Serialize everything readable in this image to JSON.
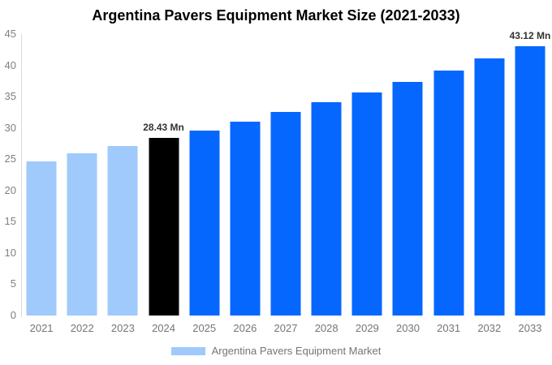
{
  "chart_data": {
    "type": "bar",
    "title": "Argentina Pavers Equipment Market Size (2021-2033)",
    "categories": [
      "2021",
      "2022",
      "2023",
      "2024",
      "2025",
      "2026",
      "2027",
      "2028",
      "2029",
      "2030",
      "2031",
      "2032",
      "2033"
    ],
    "series": [
      {
        "name": "Argentina Pavers Equipment Market",
        "values": [
          24.7,
          25.9,
          27.1,
          28.43,
          29.6,
          31.0,
          32.6,
          34.1,
          35.7,
          37.4,
          39.2,
          41.1,
          43.12
        ]
      }
    ],
    "unit": "Mn",
    "xlabel": "",
    "ylabel": "",
    "ylim": [
      0,
      45
    ],
    "ytick_step": 5,
    "grid": false,
    "legend_position": "bottom",
    "point_labels": [
      null,
      null,
      null,
      "28.43 Mn",
      null,
      null,
      null,
      null,
      null,
      null,
      null,
      null,
      "43.12 Mn"
    ],
    "bar_colors": [
      "#9FCAFB",
      "#9FCAFB",
      "#9FCAFB",
      "#000000",
      "#0667FE",
      "#0667FE",
      "#0667FE",
      "#0667FE",
      "#0667FE",
      "#0667FE",
      "#0667FE",
      "#0667FE",
      "#0667FE"
    ],
    "style_colors": {
      "title_text": "#000000",
      "y_tick_text": "#808080",
      "x_tick_text": "#757575",
      "point_label_text": "#333333",
      "axis_line": "#D9D9D9",
      "historical_bar": "#9FCAFB",
      "highlight_bar": "#000000",
      "forecast_bar": "#0667FE"
    }
  },
  "legend": {
    "label": "Argentina Pavers Equipment Market",
    "swatch_color": "#9FCAFB"
  }
}
